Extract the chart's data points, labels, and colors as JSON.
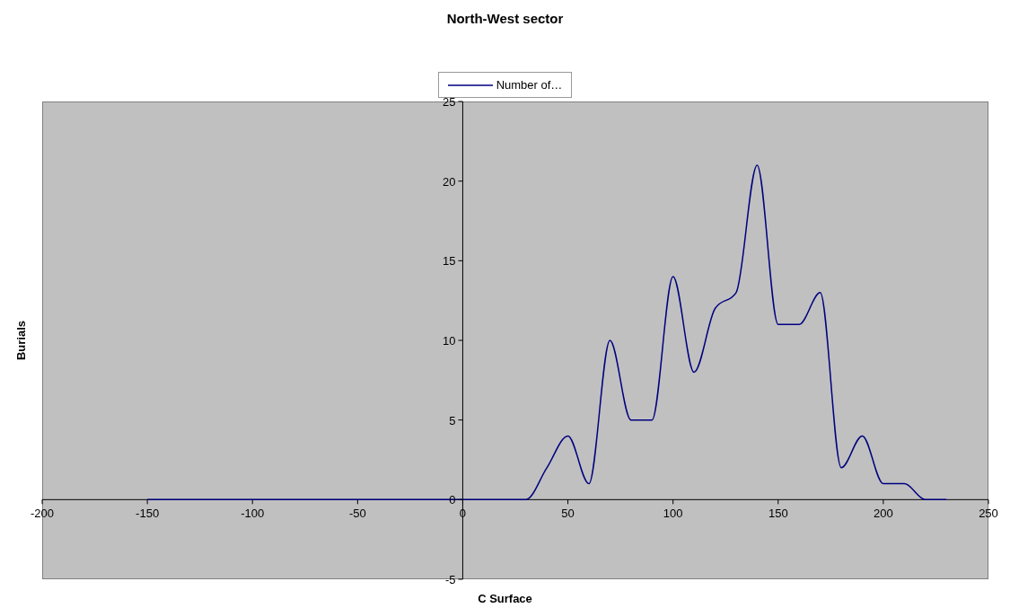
{
  "chart_data": {
    "type": "line",
    "title": "North-West sector",
    "xlabel": "C Surface",
    "ylabel": "Burials",
    "x": [
      -150,
      -140,
      -130,
      -120,
      -110,
      -100,
      -90,
      -80,
      -70,
      -60,
      -50,
      -40,
      -30,
      -20,
      -10,
      0,
      10,
      20,
      30,
      40,
      50,
      60,
      70,
      80,
      90,
      100,
      110,
      120,
      130,
      140,
      150,
      160,
      170,
      180,
      190,
      200,
      210,
      220,
      230
    ],
    "series": [
      {
        "name": "Number of…",
        "color": "#000080",
        "values": [
          0,
          0,
          0,
          0,
          0,
          0,
          0,
          0,
          0,
          0,
          0,
          0,
          0,
          0,
          0,
          0,
          0,
          0,
          0,
          2,
          4,
          1,
          10,
          5,
          5,
          14,
          8,
          12,
          13,
          21,
          11,
          11,
          13,
          2,
          4,
          1,
          1,
          0,
          0
        ]
      }
    ],
    "xlim": [
      -200,
      250
    ],
    "xticks": [
      -200,
      -150,
      -100,
      -50,
      0,
      50,
      100,
      150,
      200,
      250
    ],
    "ylim": [
      -5,
      25
    ],
    "yticks": [
      -5,
      0,
      5,
      10,
      15,
      20,
      25
    ],
    "legend": "top",
    "marker": "none",
    "grid": false
  }
}
